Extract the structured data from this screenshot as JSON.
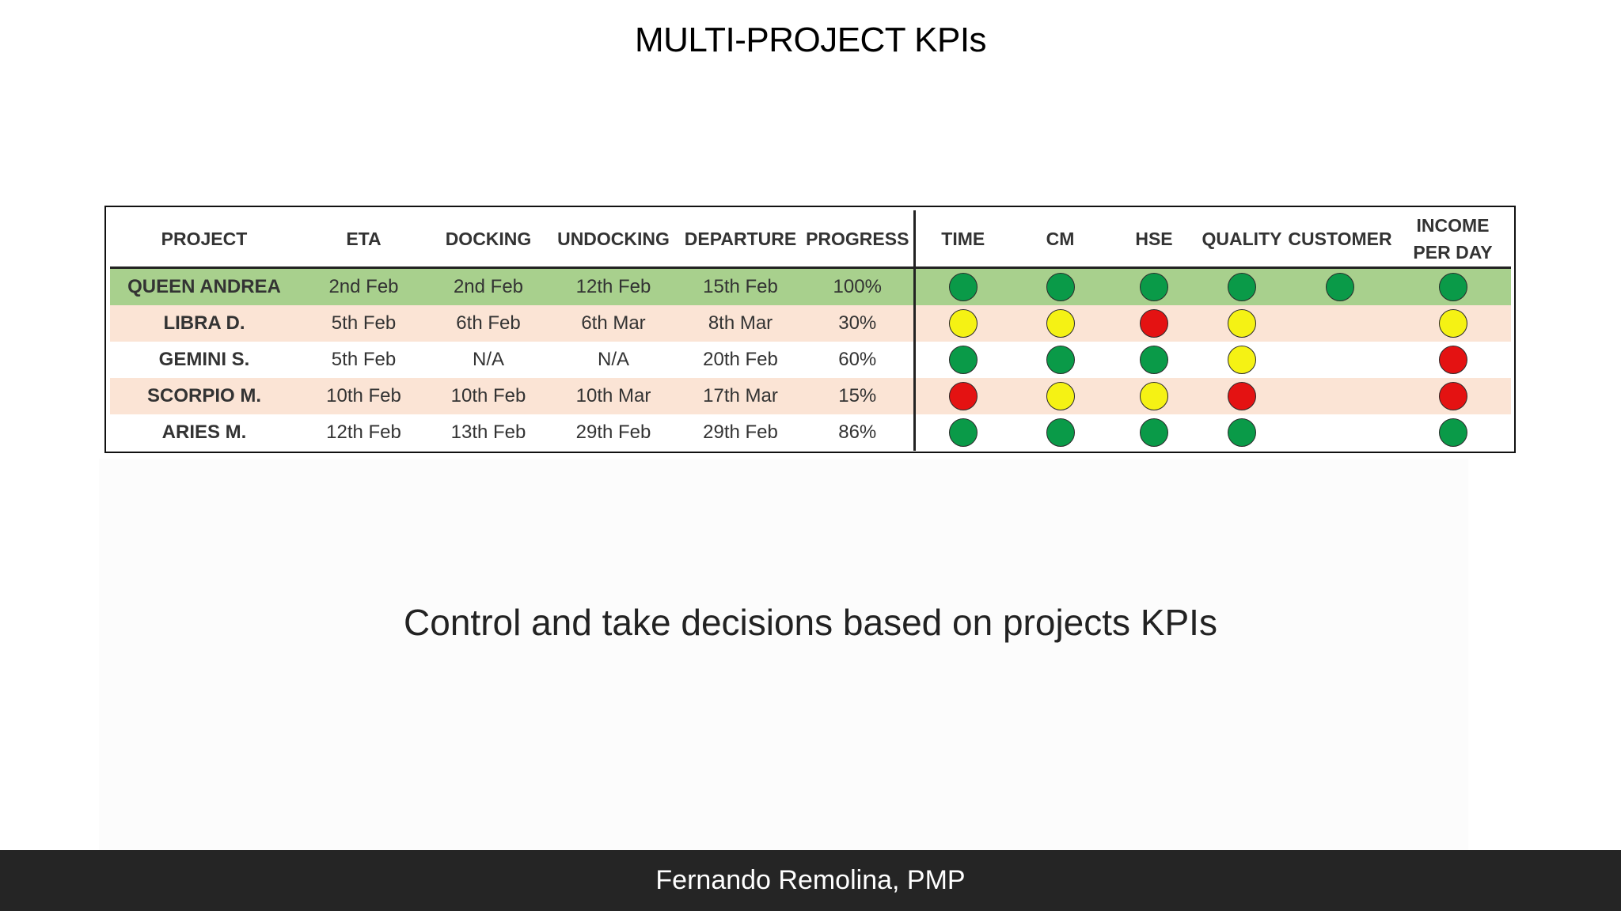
{
  "slide": {
    "title": "MULTI-PROJECT KPIs",
    "subtitle": "Control and take decisions based on projects KPIs",
    "footer": "Fernando Remolina, PMP"
  },
  "colors": {
    "green": "#0a9a48",
    "yellow": "#f5f214",
    "red": "#e41212",
    "row_highlight_green": "#a8d08d",
    "row_highlight_peach": "#fbe4d5",
    "footer_background": "#252525"
  },
  "table": {
    "headers": {
      "project": "PROJECT",
      "eta": "ETA",
      "docking": "DOCKING",
      "undocking": "UNDOCKING",
      "departure": "DEPARTURE",
      "progress": "PROGRESS",
      "time": "TIME",
      "cm": "CM",
      "hse": "HSE",
      "quality": "QUALITY",
      "customer": "CUSTOMER",
      "income_line1": "INCOME",
      "income_line2": "PER DAY"
    },
    "rows": [
      {
        "project": "QUEEN ANDREA",
        "eta": "2nd Feb",
        "docking": "2nd Feb",
        "undocking": "12th Feb",
        "departure": "15th Feb",
        "progress": "100%",
        "row_color": "#a8d08d",
        "time": "green",
        "cm": "green",
        "hse": "green",
        "quality": "green",
        "customer": "green",
        "income_per_day": "green"
      },
      {
        "project": "LIBRA D.",
        "eta": "5th Feb",
        "docking": "6th Feb",
        "undocking": "6th Mar",
        "departure": "8th Mar",
        "progress": "30%",
        "row_color": "#fbe4d5",
        "time": "yellow",
        "cm": "yellow",
        "hse": "red",
        "quality": "yellow",
        "customer": "",
        "income_per_day": "yellow"
      },
      {
        "project": "GEMINI S.",
        "eta": "5th Feb",
        "docking": "N/A",
        "undocking": "N/A",
        "departure": "20th Feb",
        "progress": "60%",
        "row_color": "#ffffff",
        "time": "green",
        "cm": "green",
        "hse": "green",
        "quality": "yellow",
        "customer": "",
        "income_per_day": "red"
      },
      {
        "project": "SCORPIO M.",
        "eta": "10th Feb",
        "docking": "10th Feb",
        "undocking": "10th Mar",
        "departure": "17th Mar",
        "progress": "15%",
        "row_color": "#fbe4d5",
        "time": "red",
        "cm": "yellow",
        "hse": "yellow",
        "quality": "red",
        "customer": "",
        "income_per_day": "red"
      },
      {
        "project": "ARIES M.",
        "eta": "12th Feb",
        "docking": "13th Feb",
        "undocking": "29th Feb",
        "departure": "29th Feb",
        "progress": "86%",
        "row_color": "#ffffff",
        "time": "green",
        "cm": "green",
        "hse": "green",
        "quality": "green",
        "customer": "",
        "income_per_day": "green"
      }
    ]
  }
}
